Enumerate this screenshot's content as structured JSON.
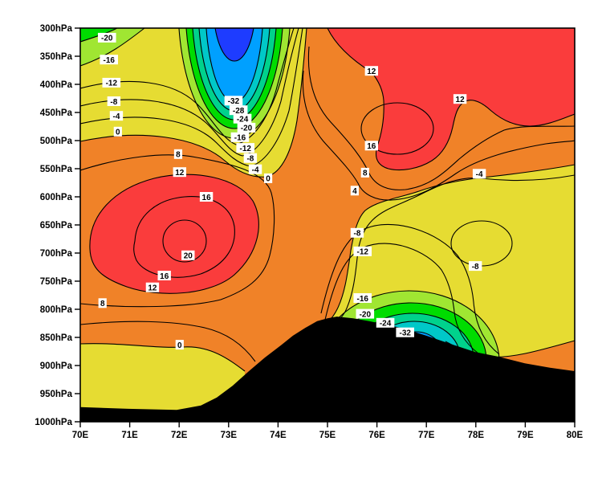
{
  "chart_data": {
    "type": "heatmap",
    "subtype": "filled-contour-vertical-cross-section",
    "title": "",
    "x_axis": {
      "ticks": [
        "70E",
        "71E",
        "72E",
        "73E",
        "74E",
        "75E",
        "76E",
        "77E",
        "78E",
        "79E",
        "80E"
      ],
      "range": [
        70,
        80
      ]
    },
    "y_axis": {
      "ticks": [
        "300hPa",
        "350hPa",
        "400hPa",
        "450hPa",
        "500hPa",
        "550hPa",
        "600hPa",
        "650hPa",
        "700hPa",
        "750hPa",
        "800hPa",
        "850hPa",
        "900hPa",
        "950hPa",
        "1000hPa"
      ],
      "range": [
        300,
        1000
      ],
      "note": "pressure decreases upward"
    },
    "contour_interval": 4,
    "fill_levels": [
      {
        "range": "<= -36",
        "color": "#1e3cff"
      },
      {
        "range": "-36 to -32",
        "color": "#00a0ff"
      },
      {
        "range": "-32 to -28",
        "color": "#00c8c8"
      },
      {
        "range": "-28 to -24",
        "color": "#00d28c"
      },
      {
        "range": "-24 to -20",
        "color": "#00dc00"
      },
      {
        "range": "-20 to -16",
        "color": "#a0e632"
      },
      {
        "range": "-16 to 0",
        "color": "#e6dc32"
      },
      {
        "range": "0 to 12",
        "color": "#f08228"
      },
      {
        "range": ">= 12",
        "color": "#fa3c3c"
      }
    ],
    "terrain_color": "#000000",
    "terrain_profile": [
      [
        70.0,
        974
      ],
      [
        70.97,
        977
      ],
      [
        71.95,
        979
      ],
      [
        72.44,
        971
      ],
      [
        72.76,
        957
      ],
      [
        73.08,
        936
      ],
      [
        73.41,
        910
      ],
      [
        73.73,
        886
      ],
      [
        74.06,
        864
      ],
      [
        74.3,
        847
      ],
      [
        74.55,
        833
      ],
      [
        74.79,
        821
      ],
      [
        75.0,
        816
      ],
      [
        75.19,
        813
      ],
      [
        75.52,
        816
      ],
      [
        75.84,
        821
      ],
      [
        76.17,
        827
      ],
      [
        76.49,
        833
      ],
      [
        77.0,
        847
      ],
      [
        77.47,
        861
      ],
      [
        77.99,
        876
      ],
      [
        78.44,
        884
      ],
      [
        78.99,
        896
      ],
      [
        79.5,
        904
      ],
      [
        80.0,
        910
      ]
    ],
    "contour_labels": [
      {
        "value": "-20",
        "lon": 70.54,
        "p": 317
      },
      {
        "value": "-16",
        "lon": 70.58,
        "p": 356
      },
      {
        "value": "-12",
        "lon": 70.63,
        "p": 397
      },
      {
        "value": "-8",
        "lon": 70.68,
        "p": 430
      },
      {
        "value": "-4",
        "lon": 70.73,
        "p": 456
      },
      {
        "value": "0",
        "lon": 70.76,
        "p": 484
      },
      {
        "value": "-32",
        "lon": 73.1,
        "p": 429
      },
      {
        "value": "-28",
        "lon": 73.2,
        "p": 446
      },
      {
        "value": "-24",
        "lon": 73.28,
        "p": 461
      },
      {
        "value": "-20",
        "lon": 73.36,
        "p": 477
      },
      {
        "value": "-16",
        "lon": 73.23,
        "p": 494
      },
      {
        "value": "-12",
        "lon": 73.34,
        "p": 513
      },
      {
        "value": "-8",
        "lon": 73.44,
        "p": 531
      },
      {
        "value": "-4",
        "lon": 73.54,
        "p": 551
      },
      {
        "value": "0",
        "lon": 73.8,
        "p": 567
      },
      {
        "value": "12",
        "lon": 75.89,
        "p": 376
      },
      {
        "value": "12",
        "lon": 77.68,
        "p": 426
      },
      {
        "value": "16",
        "lon": 75.89,
        "p": 509
      },
      {
        "value": "8",
        "lon": 75.76,
        "p": 557
      },
      {
        "value": "4",
        "lon": 75.55,
        "p": 589
      },
      {
        "value": "-4",
        "lon": 78.07,
        "p": 559
      },
      {
        "value": "-8",
        "lon": 77.99,
        "p": 723
      },
      {
        "value": "8",
        "lon": 71.98,
        "p": 524
      },
      {
        "value": "12",
        "lon": 72.01,
        "p": 556
      },
      {
        "value": "16",
        "lon": 72.55,
        "p": 600
      },
      {
        "value": "20",
        "lon": 72.18,
        "p": 704
      },
      {
        "value": "16",
        "lon": 71.7,
        "p": 740
      },
      {
        "value": "12",
        "lon": 71.46,
        "p": 761
      },
      {
        "value": "8",
        "lon": 70.45,
        "p": 789
      },
      {
        "value": "0",
        "lon": 72.01,
        "p": 863
      },
      {
        "value": "-8",
        "lon": 75.6,
        "p": 664
      },
      {
        "value": "-12",
        "lon": 75.71,
        "p": 697
      },
      {
        "value": "-16",
        "lon": 75.71,
        "p": 780
      },
      {
        "value": "-20",
        "lon": 75.76,
        "p": 808
      },
      {
        "value": "-24",
        "lon": 76.17,
        "p": 824
      },
      {
        "value": "-32",
        "lon": 76.57,
        "p": 841
      }
    ]
  },
  "colors": {
    "background": "#ffffff",
    "frame": "#000000",
    "contour_line": "#000000",
    "label_box": "#ffffff"
  }
}
